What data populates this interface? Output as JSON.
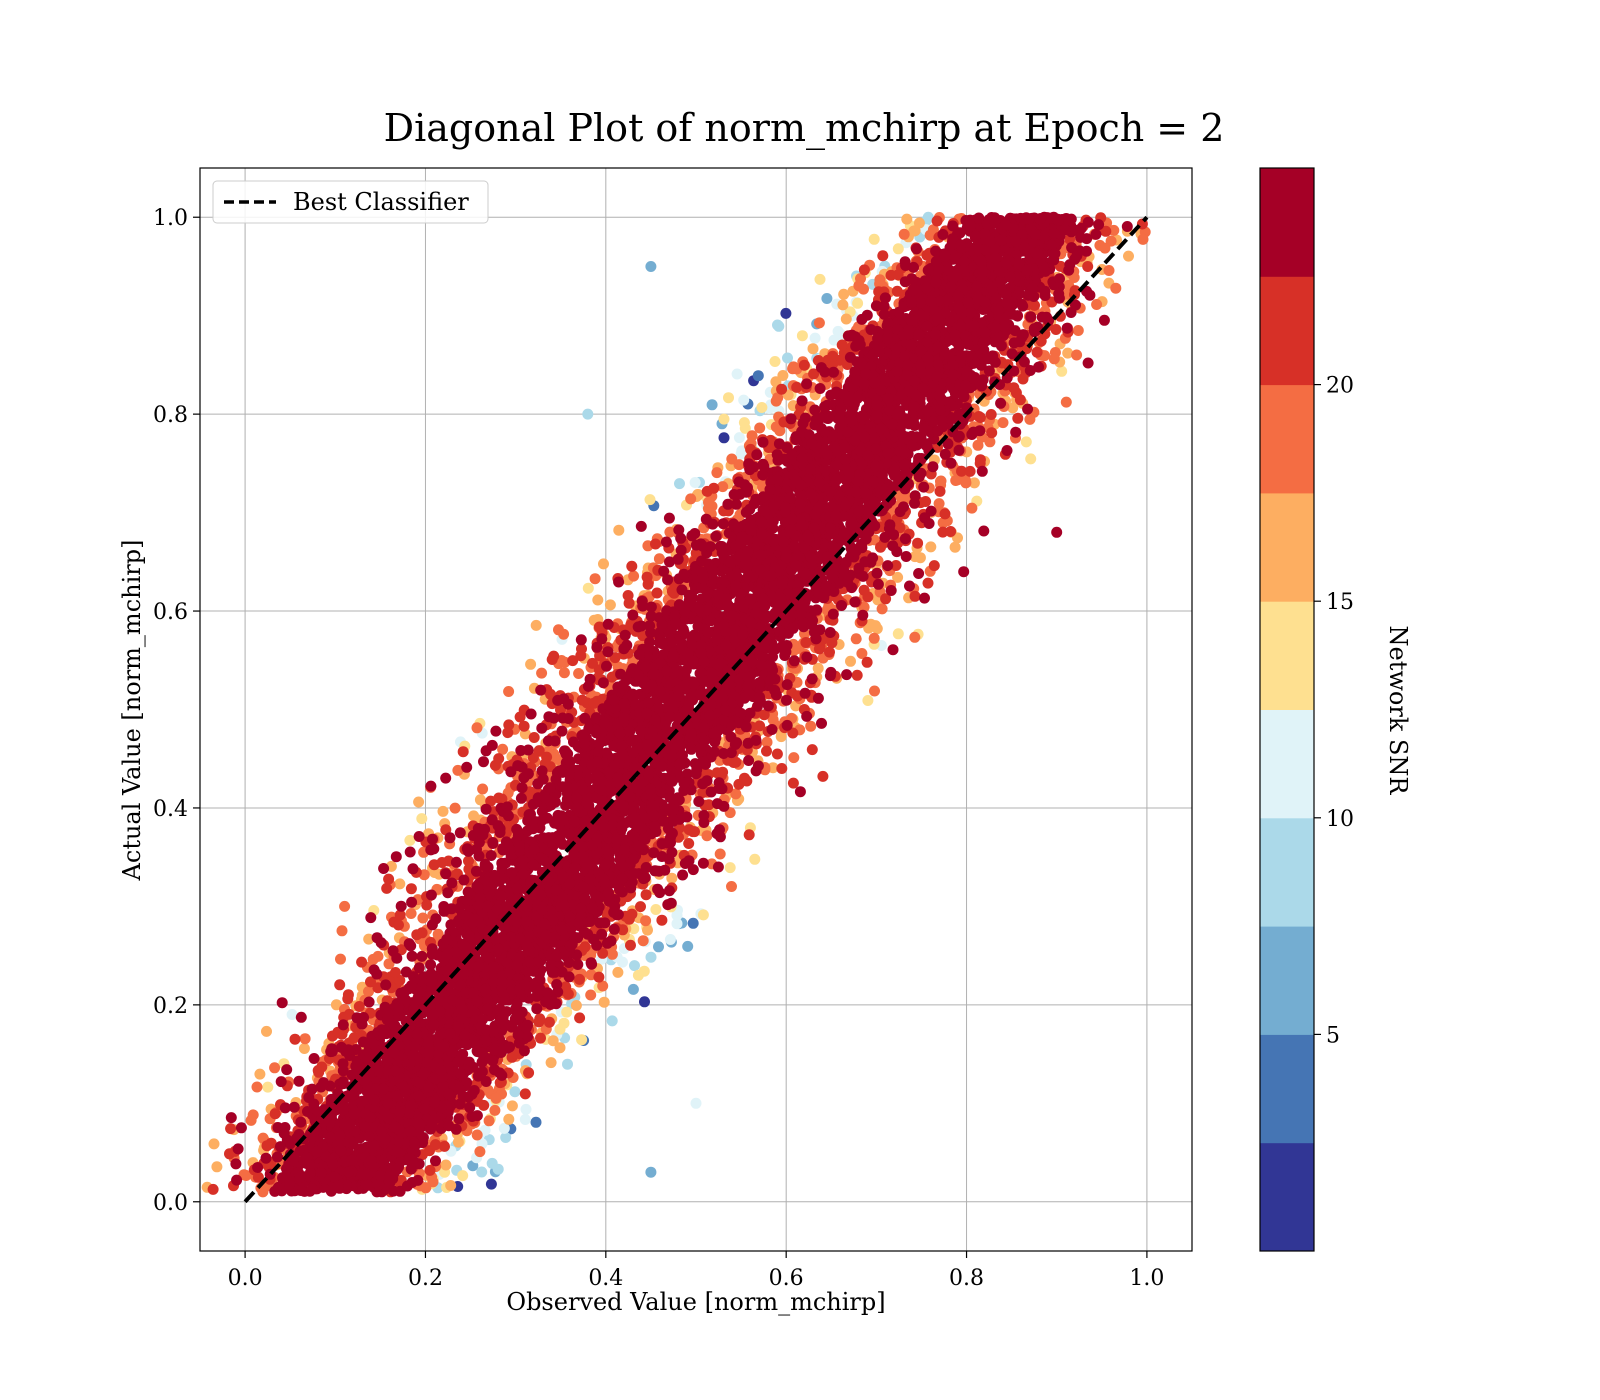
{
  "chart_data": {
    "type": "scatter",
    "title": "Diagonal Plot of norm_mchirp at Epoch = 2",
    "xlabel": "Observed Value [norm_mchirp]",
    "ylabel": "Actual Value [norm_mchirp]",
    "xlim": [
      -0.05,
      1.05
    ],
    "ylim": [
      -0.05,
      1.05
    ],
    "x_ticks": [
      "0.0",
      "0.2",
      "0.4",
      "0.6",
      "0.8",
      "1.0"
    ],
    "y_ticks": [
      "0.0",
      "0.2",
      "0.4",
      "0.6",
      "0.8",
      "1.0"
    ],
    "grid": true,
    "legend": {
      "position": "top-left",
      "entries": [
        "Best Classifier"
      ]
    },
    "reference_line": {
      "name": "Best Classifier",
      "style": "dashed",
      "color": "#000000",
      "x": [
        0.0,
        1.0
      ],
      "y": [
        0.0,
        1.0
      ]
    },
    "colorbar": {
      "label": "Network SNR",
      "range": [
        0,
        25
      ],
      "ticks": [
        "5",
        "10",
        "15",
        "20"
      ],
      "colors": [
        "#313695",
        "#4575b4",
        "#74add1",
        "#abd9e9",
        "#e0f3f8",
        "#fee090",
        "#fdae61",
        "#f46d43",
        "#d73027",
        "#a50026"
      ]
    },
    "distribution": {
      "description_points": [
        {
          "x": 0.1,
          "y": 0.05,
          "snr": 24
        },
        {
          "x": 0.2,
          "y": 0.2,
          "snr": 24
        },
        {
          "x": 0.4,
          "y": 0.4,
          "snr": 24
        },
        {
          "x": 0.6,
          "y": 0.6,
          "snr": 24
        },
        {
          "x": 0.8,
          "y": 0.8,
          "snr": 24
        },
        {
          "x": 0.45,
          "y": 0.95,
          "snr": 5
        },
        {
          "x": 0.38,
          "y": 0.8,
          "snr": 9
        },
        {
          "x": 0.5,
          "y": 0.1,
          "snr": 12
        },
        {
          "x": 0.45,
          "y": 0.03,
          "snr": 5
        },
        {
          "x": 0.9,
          "y": 0.68,
          "snr": 24
        }
      ]
    }
  }
}
